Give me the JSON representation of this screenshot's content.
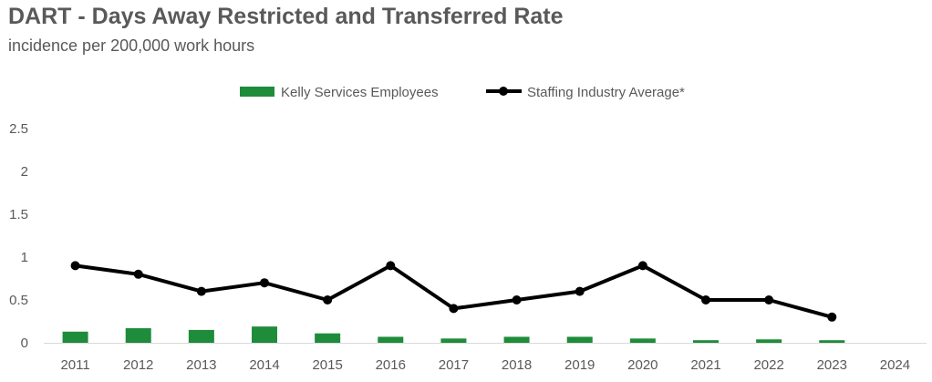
{
  "chart_data": {
    "type": "bar",
    "title": "DART - Days Away Restricted and Transferred Rate",
    "subtitle": "incidence per 200,000 work hours",
    "categories": [
      "2011",
      "2012",
      "2013",
      "2014",
      "2015",
      "2016",
      "2017",
      "2018",
      "2019",
      "2020",
      "2021",
      "2022",
      "2023",
      "2024"
    ],
    "series": [
      {
        "name": "Kelly Services Employees",
        "type": "bar",
        "color": "#1e8c3a",
        "values": [
          0.13,
          0.17,
          0.15,
          0.19,
          0.11,
          0.07,
          0.05,
          0.07,
          0.07,
          0.05,
          0.03,
          0.04,
          0.03,
          null
        ]
      },
      {
        "name": "Staffing Industry Average*",
        "type": "line",
        "color": "#000000",
        "values": [
          0.9,
          0.8,
          0.6,
          0.7,
          0.5,
          0.9,
          0.4,
          0.5,
          0.6,
          0.9,
          0.5,
          0.5,
          0.3,
          null
        ]
      }
    ],
    "ylim": [
      0,
      2.5
    ],
    "yticks": [
      "0",
      "0.5",
      "1",
      "1.5",
      "2",
      "2.5"
    ],
    "grid": false,
    "legend_position": "top-center"
  }
}
